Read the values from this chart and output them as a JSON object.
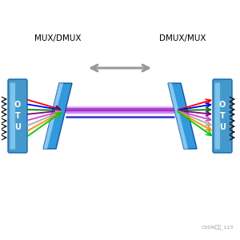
{
  "bg_color": "#ffffff",
  "label_left": "MUX/DMUX",
  "label_right": "DMUX/MUX",
  "otu_text": "O\nT\nU",
  "watermark": "CSDN博主_123",
  "top_colors": [
    "#ff0000",
    "#0000ff",
    "#008000",
    "#800080"
  ],
  "bot_colors": [
    "#cc44cc",
    "#aaaaaa",
    "#ff8800",
    "#00cc00"
  ],
  "fiber_colors": [
    "#9900bb",
    "#aa44cc",
    "#cc88ee",
    "#ddaaff",
    "#eeccff"
  ],
  "fiber_widths": [
    4.0,
    3.0,
    2.2,
    1.5,
    1.0
  ],
  "fiber_offsets": [
    0,
    2,
    -2,
    4,
    -4
  ],
  "blue_fiber_color": "#3333cc",
  "otu_color": "#4499cc",
  "otu_highlight": "#88ccee",
  "panel_color": "#2277bb",
  "panel_face": "#3399dd",
  "panel_highlight": "#aaddff",
  "arrow_color": "#999999",
  "tick_color": "#111111",
  "text_color": "#000000",
  "watermark_color": "#999999"
}
